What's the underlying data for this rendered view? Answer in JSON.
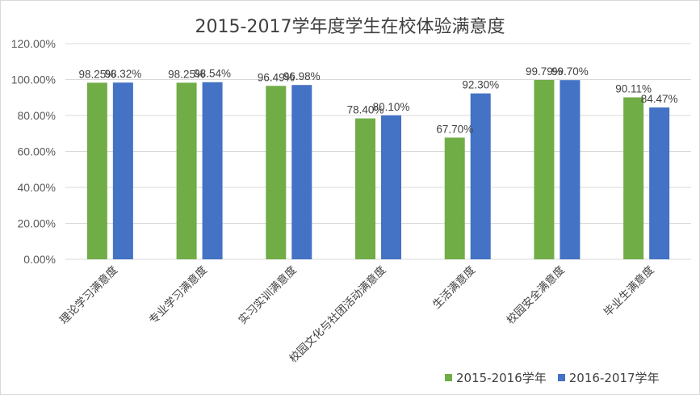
{
  "chart_data": {
    "type": "bar",
    "title": "2015-2017学年度学生在校体验满意度",
    "categories": [
      "理论学习满意度",
      "专业学习满意度",
      "实习实训满意度",
      "校园文化与社团活动满意度",
      "生活满意度",
      "校园安全满意度",
      "毕业生满意度"
    ],
    "series": [
      {
        "name": "2015-2016学年",
        "color": "#70ad47",
        "values": [
          98.25,
          98.25,
          96.49,
          78.4,
          67.7,
          99.79,
          90.11
        ]
      },
      {
        "name": "2016-2017学年",
        "color": "#4472c4",
        "values": [
          98.32,
          98.54,
          96.98,
          80.1,
          92.3,
          99.7,
          84.47
        ]
      }
    ],
    "ylim": [
      0,
      120
    ],
    "yticks": [
      0,
      20,
      40,
      60,
      80,
      100,
      120
    ],
    "ytick_labels": [
      "0.00%",
      "20.00%",
      "40.00%",
      "60.00%",
      "80.00%",
      "100.00%",
      "120.00%"
    ],
    "data_label_suffix": "%",
    "grid": true,
    "legend": "bottom-right"
  }
}
